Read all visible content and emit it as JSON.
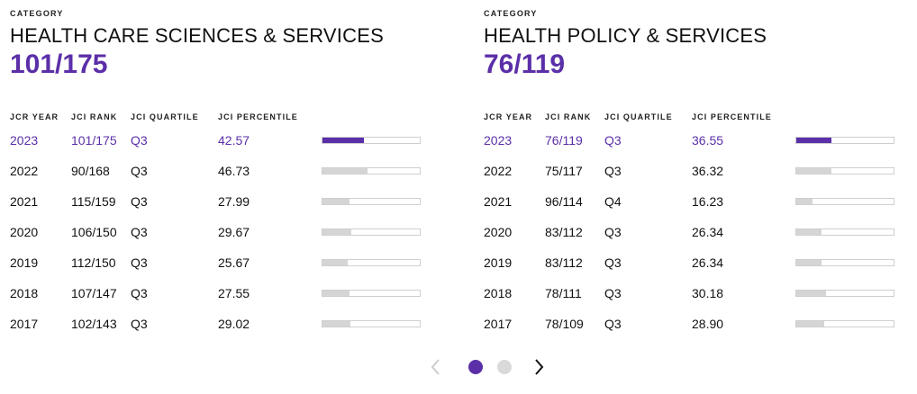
{
  "colors": {
    "accent": "#5b2fa8",
    "bar_inactive": "#d5d5d5",
    "dot_inactive": "#d9d9d9"
  },
  "panels": [
    {
      "category_label": "CATEGORY",
      "category_name": "HEALTH CARE SCIENCES & SERVICES",
      "category_rank": "101/175",
      "headers": {
        "year": "JCR YEAR",
        "rank": "JCI RANK",
        "quartile": "JCI QUARTILE",
        "percentile": "JCI PERCENTILE"
      },
      "rows": [
        {
          "year": "2023",
          "rank": "101/175",
          "quartile": "Q3",
          "percentile": "42.57",
          "current": true
        },
        {
          "year": "2022",
          "rank": "90/168",
          "quartile": "Q3",
          "percentile": "46.73"
        },
        {
          "year": "2021",
          "rank": "115/159",
          "quartile": "Q3",
          "percentile": "27.99"
        },
        {
          "year": "2020",
          "rank": "106/150",
          "quartile": "Q3",
          "percentile": "29.67"
        },
        {
          "year": "2019",
          "rank": "112/150",
          "quartile": "Q3",
          "percentile": "25.67"
        },
        {
          "year": "2018",
          "rank": "107/147",
          "quartile": "Q3",
          "percentile": "27.55"
        },
        {
          "year": "2017",
          "rank": "102/143",
          "quartile": "Q3",
          "percentile": "29.02"
        }
      ]
    },
    {
      "category_label": "CATEGORY",
      "category_name": "HEALTH POLICY & SERVICES",
      "category_rank": "76/119",
      "headers": {
        "year": "JCR YEAR",
        "rank": "JCI RANK",
        "quartile": "JCI QUARTILE",
        "percentile": "JCI PERCENTILE"
      },
      "rows": [
        {
          "year": "2023",
          "rank": "76/119",
          "quartile": "Q3",
          "percentile": "36.55",
          "current": true
        },
        {
          "year": "2022",
          "rank": "75/117",
          "quartile": "Q3",
          "percentile": "36.32"
        },
        {
          "year": "2021",
          "rank": "96/114",
          "quartile": "Q4",
          "percentile": "16.23"
        },
        {
          "year": "2020",
          "rank": "83/112",
          "quartile": "Q3",
          "percentile": "26.34"
        },
        {
          "year": "2019",
          "rank": "83/112",
          "quartile": "Q3",
          "percentile": "26.34"
        },
        {
          "year": "2018",
          "rank": "78/111",
          "quartile": "Q3",
          "percentile": "30.18"
        },
        {
          "year": "2017",
          "rank": "78/109",
          "quartile": "Q3",
          "percentile": "28.90"
        }
      ]
    }
  ],
  "pager": {
    "prev_icon": "chevron-left-icon",
    "next_icon": "chevron-right-icon",
    "page_count": 2,
    "active_page": 1
  }
}
